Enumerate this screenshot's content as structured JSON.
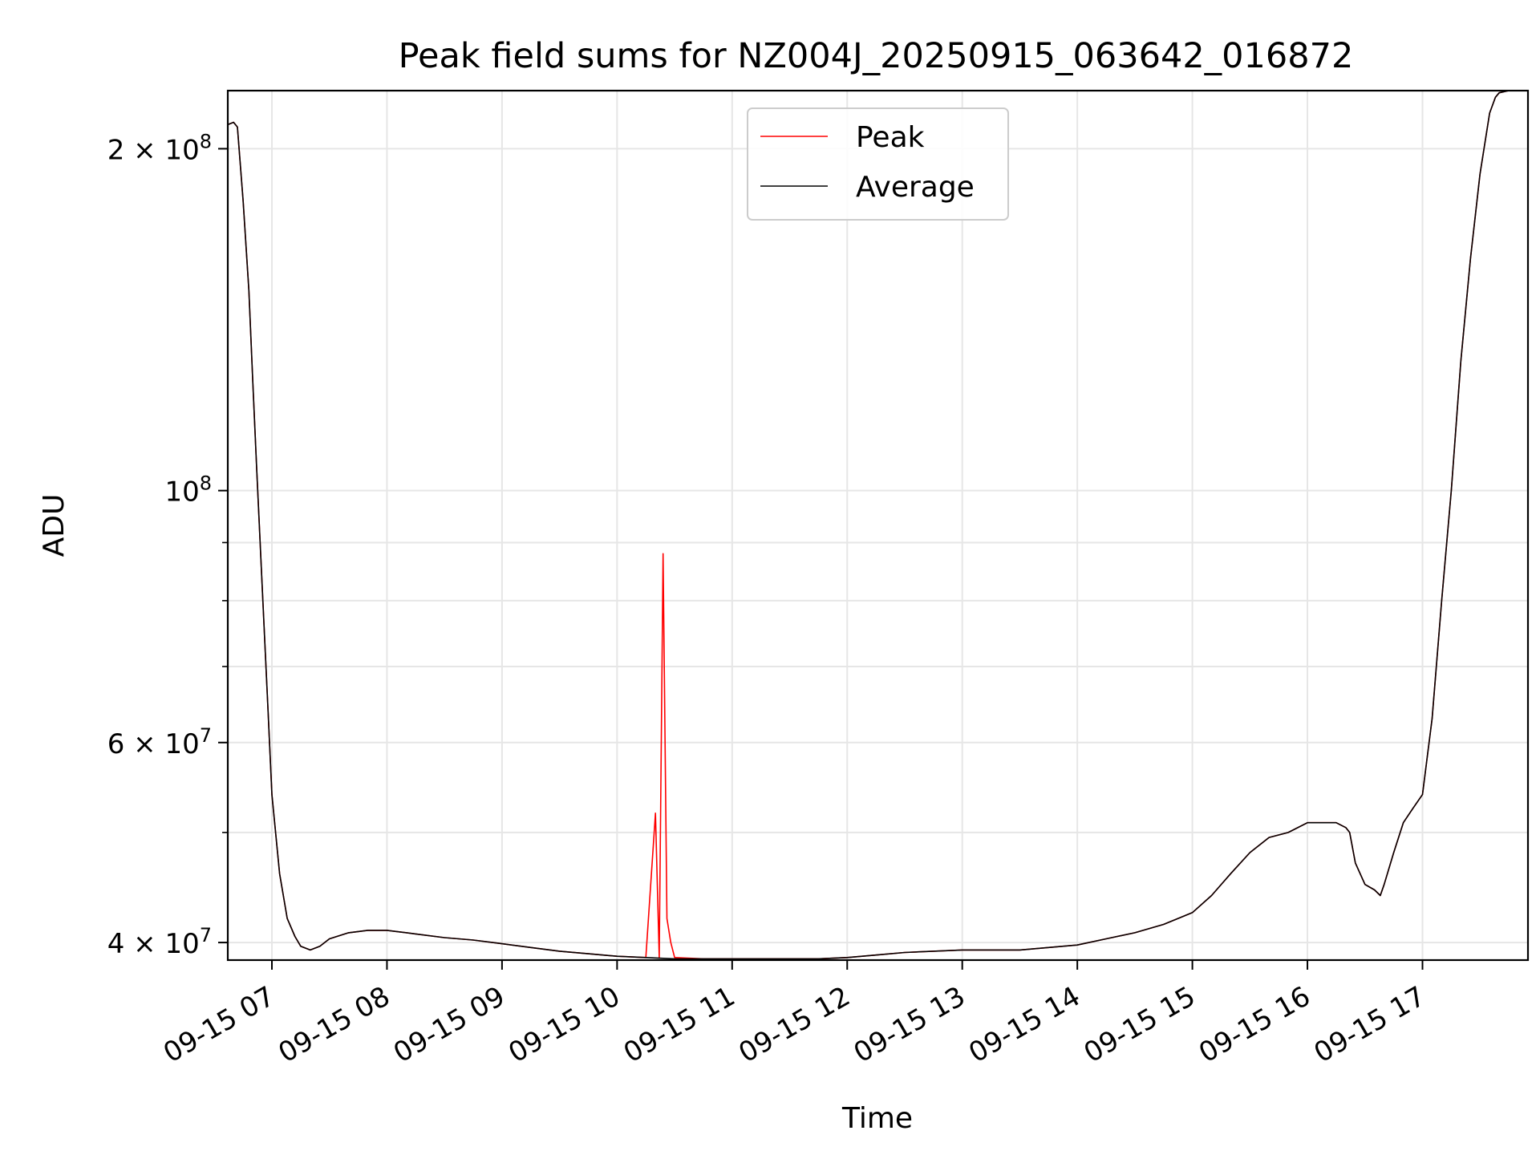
{
  "chart_data": {
    "type": "line",
    "title": "Peak field sums for NZ004J_20250915_063642_016872",
    "xlabel": "Time",
    "ylabel": "ADU",
    "y_scale": "log",
    "xlim": [
      "2025-09-15 06:37",
      "2025-09-15 17:55"
    ],
    "ylim": [
      38600000,
      225000000
    ],
    "grid": true,
    "legend_position": "top-center",
    "x_tick_labels": [
      "09-15 07",
      "09-15 08",
      "09-15 09",
      "09-15 10",
      "09-15 11",
      "09-15 12",
      "09-15 13",
      "09-15 14",
      "09-15 15",
      "09-15 16",
      "09-15 17"
    ],
    "y_tick_labels": [
      {
        "value": 200000000,
        "mantissa": "2",
        "exponent": "8"
      },
      {
        "value": 100000000,
        "mantissa": "",
        "exponent": "8"
      },
      {
        "value": 60000000,
        "mantissa": "6",
        "exponent": "7"
      },
      {
        "value": 40000000,
        "mantissa": "4",
        "exponent": "7"
      }
    ],
    "series": [
      {
        "name": "Average",
        "color": "#000000",
        "x": [
          "06:37",
          "06:40",
          "06:42",
          "06:45",
          "06:48",
          "06:50",
          "06:52",
          "06:55",
          "06:58",
          "07:00",
          "07:04",
          "07:08",
          "07:12",
          "07:15",
          "07:20",
          "07:25",
          "07:30",
          "07:40",
          "07:50",
          "08:00",
          "08:15",
          "08:30",
          "08:45",
          "09:00",
          "09:15",
          "09:30",
          "09:45",
          "10:00",
          "10:15",
          "10:30",
          "10:45",
          "11:00",
          "11:15",
          "11:30",
          "11:45",
          "12:00",
          "12:15",
          "12:30",
          "12:45",
          "13:00",
          "13:15",
          "13:30",
          "13:45",
          "14:00",
          "14:15",
          "14:30",
          "14:45",
          "15:00",
          "15:10",
          "15:20",
          "15:30",
          "15:40",
          "15:50",
          "16:00",
          "16:15",
          "16:20",
          "16:22",
          "16:25",
          "16:30",
          "16:35",
          "16:38",
          "16:40",
          "16:45",
          "16:50",
          "16:55",
          "17:00",
          "17:05",
          "17:10",
          "17:15",
          "17:20",
          "17:25",
          "17:30",
          "17:35",
          "17:38",
          "17:40",
          "17:45",
          "17:50",
          "17:55"
        ],
        "y": [
          210000000,
          211000000,
          209000000,
          180000000,
          150000000,
          125000000,
          105000000,
          82000000,
          64000000,
          54000000,
          46000000,
          42000000,
          40500000,
          39700000,
          39400000,
          39700000,
          40300000,
          40800000,
          41000000,
          41000000,
          40700000,
          40400000,
          40200000,
          39900000,
          39600000,
          39300000,
          39100000,
          38900000,
          38800000,
          38700000,
          38700000,
          38700000,
          38700000,
          38700000,
          38700000,
          38800000,
          39000000,
          39200000,
          39300000,
          39400000,
          39400000,
          39400000,
          39600000,
          39800000,
          40300000,
          40800000,
          41500000,
          42500000,
          44000000,
          46000000,
          48000000,
          49500000,
          50000000,
          51000000,
          51000000,
          50500000,
          50000000,
          47000000,
          45000000,
          44500000,
          44000000,
          45000000,
          48000000,
          51000000,
          52500000,
          54000000,
          63000000,
          80000000,
          100000000,
          130000000,
          160000000,
          190000000,
          215000000,
          222000000,
          224000000,
          225000000,
          225000000,
          225000000
        ]
      },
      {
        "name": "Peak",
        "color": "#ff0000",
        "x": [
          "06:37",
          "06:40",
          "06:42",
          "06:45",
          "06:48",
          "06:50",
          "06:52",
          "06:55",
          "06:58",
          "07:00",
          "07:04",
          "07:08",
          "07:12",
          "07:15",
          "07:20",
          "07:25",
          "07:30",
          "07:40",
          "07:50",
          "08:00",
          "08:15",
          "08:30",
          "08:45",
          "09:00",
          "09:15",
          "09:30",
          "09:45",
          "10:00",
          "10:15",
          "10:20",
          "10:22",
          "10:24",
          "10:26",
          "10:28",
          "10:30",
          "10:45",
          "11:00",
          "11:15",
          "11:30",
          "11:45",
          "12:00",
          "12:15",
          "12:30",
          "12:45",
          "13:00",
          "13:15",
          "13:30",
          "13:45",
          "14:00",
          "14:15",
          "14:30",
          "14:45",
          "15:00",
          "15:10",
          "15:20",
          "15:30",
          "15:40",
          "15:50",
          "16:00",
          "16:15",
          "16:20",
          "16:22",
          "16:25",
          "16:30",
          "16:35",
          "16:38",
          "16:40",
          "16:45",
          "16:50",
          "16:55",
          "17:00",
          "17:05",
          "17:10",
          "17:15",
          "17:20",
          "17:25",
          "17:30",
          "17:35",
          "17:38",
          "17:40",
          "17:45",
          "17:50",
          "17:55"
        ],
        "y": [
          210000000,
          211000000,
          209000000,
          180000000,
          150000000,
          125000000,
          105000000,
          82000000,
          64000000,
          54000000,
          46000000,
          42000000,
          40500000,
          39700000,
          39400000,
          39700000,
          40300000,
          40800000,
          41000000,
          41000000,
          40700000,
          40400000,
          40200000,
          39900000,
          39600000,
          39300000,
          39100000,
          38900000,
          38800000,
          52000000,
          38800000,
          88000000,
          42000000,
          40000000,
          38800000,
          38700000,
          38700000,
          38700000,
          38700000,
          38700000,
          38800000,
          39000000,
          39200000,
          39300000,
          39400000,
          39400000,
          39400000,
          39600000,
          39800000,
          40300000,
          40800000,
          41500000,
          42500000,
          44000000,
          46000000,
          48000000,
          49500000,
          50000000,
          51000000,
          51000000,
          50500000,
          50000000,
          47000000,
          45000000,
          44500000,
          44000000,
          45000000,
          48000000,
          51000000,
          52500000,
          54000000,
          63000000,
          80000000,
          100000000,
          130000000,
          160000000,
          190000000,
          215000000,
          222000000,
          224000000,
          225000000,
          225000000,
          225000000
        ]
      }
    ]
  }
}
